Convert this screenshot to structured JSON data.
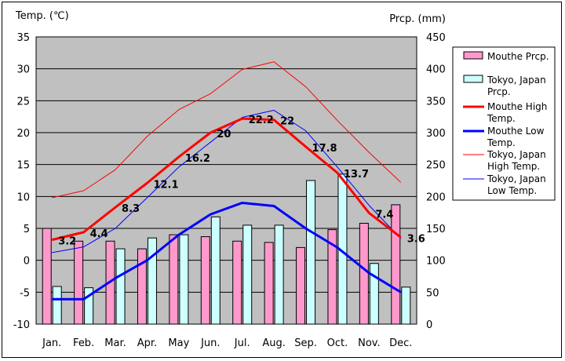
{
  "chart_data": {
    "type": "bar+line",
    "categories": [
      "Jan.",
      "Feb.",
      "Mar.",
      "Apr.",
      "May",
      "Jun.",
      "Jul.",
      "Aug.",
      "Sep.",
      "Oct.",
      "Nov.",
      "Dec."
    ],
    "left_axis": {
      "label": "Temp. (℃)",
      "min": -10,
      "max": 35,
      "step": 5
    },
    "right_axis": {
      "label": "Prcp. (mm)",
      "min": 0,
      "max": 450,
      "step": 50
    },
    "bar_series": [
      {
        "name": "Mouthe Prcp.",
        "legend": [
          "Mouthe Prcp."
        ],
        "color": "#ff99cc",
        "values": [
          150,
          130,
          130,
          118,
          140,
          137,
          130,
          128,
          120,
          148,
          158,
          187
        ]
      },
      {
        "name": "Tokyo, Japan Prcp.",
        "legend": [
          "Tokyo, Japan",
          "Prcp."
        ],
        "color": "#ccffff",
        "values": [
          59,
          57,
          118,
          135,
          140,
          168,
          155,
          155,
          225,
          235,
          95,
          58
        ]
      }
    ],
    "line_series": [
      {
        "name": "Mouthe High Temp.",
        "legend": [
          "Mouthe High",
          "Temp."
        ],
        "color": "#ff0000",
        "width": 3,
        "values": [
          3.2,
          4.4,
          8.3,
          12.1,
          16.2,
          20,
          22.2,
          22,
          17.8,
          13.7,
          7.4,
          3.6
        ]
      },
      {
        "name": "Mouthe Low Temp.",
        "legend": [
          "Mouthe Low",
          "Temp."
        ],
        "color": "#0000ff",
        "width": 3,
        "values": [
          -6.1,
          -6.1,
          -2.8,
          0,
          4,
          7.2,
          9,
          8.5,
          5,
          2,
          -2,
          -5
        ]
      },
      {
        "name": "Tokyo, Japan High Temp.",
        "legend": [
          "Tokyo, Japan",
          "High Temp."
        ],
        "color": "#ff0000",
        "width": 1,
        "values": [
          9.8,
          10.9,
          14.2,
          19.4,
          23.6,
          26.1,
          29.9,
          31.1,
          27.2,
          21.9,
          16.9,
          12.2
        ]
      },
      {
        "name": "Tokyo, Japan Low Temp.",
        "legend": [
          "Tokyo, Japan",
          "Low Temp."
        ],
        "color": "#0000ff",
        "width": 1,
        "values": [
          1.2,
          2.1,
          5,
          9.8,
          14.6,
          18.5,
          22.4,
          23.5,
          20.3,
          14.6,
          8.6,
          3.4
        ]
      }
    ],
    "data_labels": [
      "3.2",
      "4.4",
      "8.3",
      "12.1",
      "16.2",
      "20",
      "22.2",
      "22",
      "17.8",
      "13.7",
      "7.4",
      "3.6"
    ],
    "plot_background": "#c0c0c0",
    "legend_position": "right"
  }
}
